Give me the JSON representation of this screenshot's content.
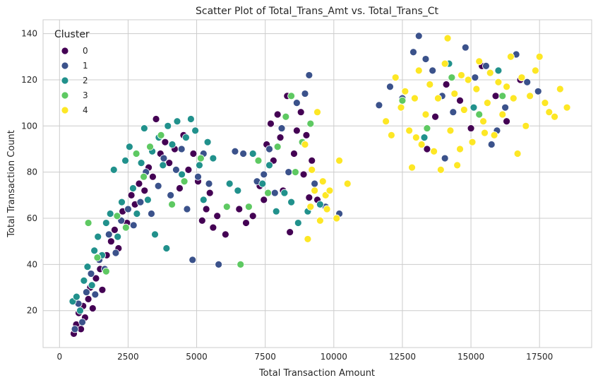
{
  "chart_data": {
    "type": "scatter",
    "title": "Scatter Plot of Total_Trans_Amt vs. Total_Trans_Ct",
    "xlabel": "Total Transaction Amount",
    "ylabel": "Total Transaction Count",
    "xlim": [
      -600,
      19400
    ],
    "ylim": [
      4,
      146
    ],
    "xticks": [
      0,
      2500,
      5000,
      7500,
      10000,
      12500,
      15000,
      17500
    ],
    "yticks": [
      20,
      40,
      60,
      80,
      100,
      120,
      140
    ],
    "grid": true,
    "legend": {
      "title": "Cluster",
      "placement": "top-left"
    },
    "series": [
      {
        "name": "0",
        "color": "#440154",
        "points": [
          [
            520,
            10
          ],
          [
            610,
            14
          ],
          [
            700,
            19
          ],
          [
            780,
            12
          ],
          [
            860,
            22
          ],
          [
            930,
            17
          ],
          [
            1050,
            25
          ],
          [
            1120,
            30
          ],
          [
            1210,
            21
          ],
          [
            1330,
            34
          ],
          [
            1480,
            38
          ],
          [
            1560,
            29
          ],
          [
            1720,
            44
          ],
          [
            1880,
            50
          ],
          [
            2010,
            55
          ],
          [
            2150,
            47
          ],
          [
            2300,
            63
          ],
          [
            2460,
            58
          ],
          [
            2620,
            70
          ],
          [
            2750,
            66
          ],
          [
            2900,
            75
          ],
          [
            3100,
            72
          ],
          [
            3250,
            82
          ],
          [
            3400,
            78
          ],
          [
            3520,
            103
          ],
          [
            3680,
            88
          ],
          [
            3850,
            93
          ],
          [
            4000,
            84
          ],
          [
            4200,
            90
          ],
          [
            4380,
            73
          ],
          [
            4520,
            96
          ],
          [
            4700,
            81
          ],
          [
            4880,
            88
          ],
          [
            5050,
            76
          ],
          [
            5200,
            59
          ],
          [
            5350,
            64
          ],
          [
            5480,
            71
          ],
          [
            5600,
            56
          ],
          [
            5750,
            61
          ],
          [
            6050,
            53
          ],
          [
            6550,
            64
          ],
          [
            6800,
            58
          ],
          [
            7050,
            61
          ],
          [
            7300,
            74
          ],
          [
            7450,
            68
          ],
          [
            7550,
            92
          ],
          [
            7700,
            101
          ],
          [
            7800,
            85
          ],
          [
            7950,
            105
          ],
          [
            8050,
            95
          ],
          [
            8150,
            72
          ],
          [
            8300,
            113
          ],
          [
            8400,
            54
          ],
          [
            8550,
            88
          ],
          [
            8650,
            98
          ],
          [
            8800,
            106
          ],
          [
            8900,
            79
          ],
          [
            9000,
            96
          ],
          [
            9100,
            69
          ],
          [
            9200,
            85
          ],
          [
            9400,
            68
          ],
          [
            13400,
            90
          ],
          [
            13700,
            104
          ],
          [
            14100,
            118
          ],
          [
            14600,
            111
          ],
          [
            15000,
            99
          ],
          [
            15400,
            126
          ],
          [
            15900,
            113
          ],
          [
            16300,
            102
          ],
          [
            16800,
            120
          ]
        ]
      },
      {
        "name": "1",
        "color": "#3b528b",
        "points": [
          [
            560,
            12
          ],
          [
            690,
            23
          ],
          [
            830,
            15
          ],
          [
            980,
            28
          ],
          [
            1150,
            36
          ],
          [
            1300,
            27
          ],
          [
            1450,
            42
          ],
          [
            1650,
            38
          ],
          [
            1800,
            53
          ],
          [
            2050,
            45
          ],
          [
            2250,
            59
          ],
          [
            2500,
            64
          ],
          [
            2700,
            57
          ],
          [
            2950,
            67
          ],
          [
            3150,
            80
          ],
          [
            3350,
            62
          ],
          [
            3600,
            74
          ],
          [
            3800,
            86
          ],
          [
            4050,
            70
          ],
          [
            4250,
            81
          ],
          [
            4450,
            90
          ],
          [
            4650,
            64
          ],
          [
            4850,
            42
          ],
          [
            5050,
            78
          ],
          [
            5250,
            88
          ],
          [
            5450,
            75
          ],
          [
            5800,
            40
          ],
          [
            6400,
            89
          ],
          [
            6700,
            88
          ],
          [
            7200,
            76
          ],
          [
            7450,
            79
          ],
          [
            7650,
            90
          ],
          [
            7850,
            71
          ],
          [
            8100,
            99
          ],
          [
            8350,
            80
          ],
          [
            8650,
            110
          ],
          [
            8950,
            114
          ],
          [
            9100,
            122
          ],
          [
            9300,
            75
          ],
          [
            9700,
            65
          ],
          [
            10200,
            62
          ],
          [
            11650,
            109
          ],
          [
            12050,
            117
          ],
          [
            12500,
            112
          ],
          [
            12900,
            132
          ],
          [
            13100,
            139
          ],
          [
            13350,
            129
          ],
          [
            13600,
            124
          ],
          [
            13950,
            113
          ],
          [
            14350,
            106
          ],
          [
            14800,
            134
          ],
          [
            15150,
            121
          ],
          [
            15550,
            126
          ],
          [
            15950,
            98
          ],
          [
            16250,
            108
          ],
          [
            16650,
            131
          ],
          [
            17050,
            119
          ],
          [
            17450,
            115
          ],
          [
            14050,
            86
          ],
          [
            15750,
            92
          ]
        ]
      },
      {
        "name": "2",
        "color": "#21918c",
        "points": [
          [
            480,
            24
          ],
          [
            620,
            26
          ],
          [
            750,
            20
          ],
          [
            890,
            33
          ],
          [
            1020,
            39
          ],
          [
            1180,
            31
          ],
          [
            1270,
            46
          ],
          [
            1400,
            52
          ],
          [
            1550,
            44
          ],
          [
            1700,
            58
          ],
          [
            1850,
            62
          ],
          [
            1980,
            81
          ],
          [
            2120,
            52
          ],
          [
            2270,
            67
          ],
          [
            2400,
            85
          ],
          [
            2550,
            91
          ],
          [
            2680,
            73
          ],
          [
            2820,
            62
          ],
          [
            2980,
            84
          ],
          [
            3090,
            99
          ],
          [
            3220,
            68
          ],
          [
            3380,
            89
          ],
          [
            3480,
            53
          ],
          [
            3620,
            95
          ],
          [
            3770,
            83
          ],
          [
            3900,
            47
          ],
          [
            3950,
            100
          ],
          [
            4110,
            92
          ],
          [
            4290,
            102
          ],
          [
            4460,
            79
          ],
          [
            4610,
            95
          ],
          [
            4790,
            103
          ],
          [
            4950,
            98
          ],
          [
            5100,
            83
          ],
          [
            5250,
            68
          ],
          [
            5400,
            93
          ],
          [
            5600,
            86
          ],
          [
            6200,
            75
          ],
          [
            6500,
            72
          ],
          [
            7050,
            88
          ],
          [
            7400,
            75
          ],
          [
            7650,
            83
          ],
          [
            7900,
            63
          ],
          [
            8200,
            71
          ],
          [
            8450,
            67
          ],
          [
            8700,
            58
          ],
          [
            9050,
            63
          ],
          [
            9500,
            66
          ],
          [
            13300,
            95
          ],
          [
            14200,
            127
          ],
          [
            15100,
            108
          ],
          [
            16000,
            124
          ]
        ]
      },
      {
        "name": "3",
        "color": "#5ec962",
        "points": [
          [
            1050,
            58
          ],
          [
            1380,
            43
          ],
          [
            1700,
            37
          ],
          [
            2100,
            61
          ],
          [
            2420,
            56
          ],
          [
            2800,
            88
          ],
          [
            3070,
            78
          ],
          [
            3300,
            91
          ],
          [
            3700,
            96
          ],
          [
            4100,
            66
          ],
          [
            4550,
            76
          ],
          [
            5150,
            86
          ],
          [
            6100,
            65
          ],
          [
            6600,
            40
          ],
          [
            6900,
            65
          ],
          [
            7250,
            85
          ],
          [
            7600,
            71
          ],
          [
            7950,
            91
          ],
          [
            8250,
            104
          ],
          [
            8450,
            113
          ],
          [
            8600,
            80
          ],
          [
            8850,
            93
          ],
          [
            9150,
            101
          ],
          [
            12500,
            111
          ],
          [
            13400,
            99
          ],
          [
            14300,
            121
          ],
          [
            15300,
            105
          ],
          [
            16150,
            113
          ]
        ]
      },
      {
        "name": "4",
        "color": "#fde725",
        "points": [
          [
            8950,
            92
          ],
          [
            9050,
            51
          ],
          [
            9150,
            65
          ],
          [
            9200,
            81
          ],
          [
            9300,
            72
          ],
          [
            9400,
            106
          ],
          [
            9500,
            59
          ],
          [
            9600,
            76
          ],
          [
            9700,
            70
          ],
          [
            9750,
            64
          ],
          [
            9850,
            72
          ],
          [
            10100,
            60
          ],
          [
            10200,
            85
          ],
          [
            10500,
            75
          ],
          [
            11900,
            102
          ],
          [
            12100,
            96
          ],
          [
            12250,
            121
          ],
          [
            12450,
            108
          ],
          [
            12600,
            115
          ],
          [
            12750,
            98
          ],
          [
            12850,
            82
          ],
          [
            12950,
            112
          ],
          [
            13100,
            124
          ],
          [
            13200,
            92
          ],
          [
            13350,
            105
          ],
          [
            13500,
            118
          ],
          [
            13650,
            89
          ],
          [
            13800,
            112
          ],
          [
            13900,
            81
          ],
          [
            14050,
            127
          ],
          [
            14150,
            138
          ],
          [
            14250,
            98
          ],
          [
            14400,
            114
          ],
          [
            14500,
            83
          ],
          [
            14650,
            122
          ],
          [
            14750,
            107
          ],
          [
            14900,
            120
          ],
          [
            15050,
            93
          ],
          [
            15200,
            116
          ],
          [
            15300,
            128
          ],
          [
            15450,
            102
          ],
          [
            15600,
            110
          ],
          [
            15700,
            123
          ],
          [
            15850,
            96
          ],
          [
            16000,
            119
          ],
          [
            16150,
            105
          ],
          [
            16300,
            117
          ],
          [
            16450,
            130
          ],
          [
            16550,
            112
          ],
          [
            16700,
            88
          ],
          [
            16850,
            121
          ],
          [
            17000,
            100
          ],
          [
            17150,
            113
          ],
          [
            17350,
            124
          ],
          [
            17500,
            130
          ],
          [
            17700,
            110
          ],
          [
            17850,
            106
          ],
          [
            18050,
            104
          ],
          [
            18250,
            116
          ],
          [
            18500,
            108
          ],
          [
            14600,
            90
          ],
          [
            13000,
            95
          ],
          [
            15500,
            97
          ]
        ]
      }
    ]
  }
}
